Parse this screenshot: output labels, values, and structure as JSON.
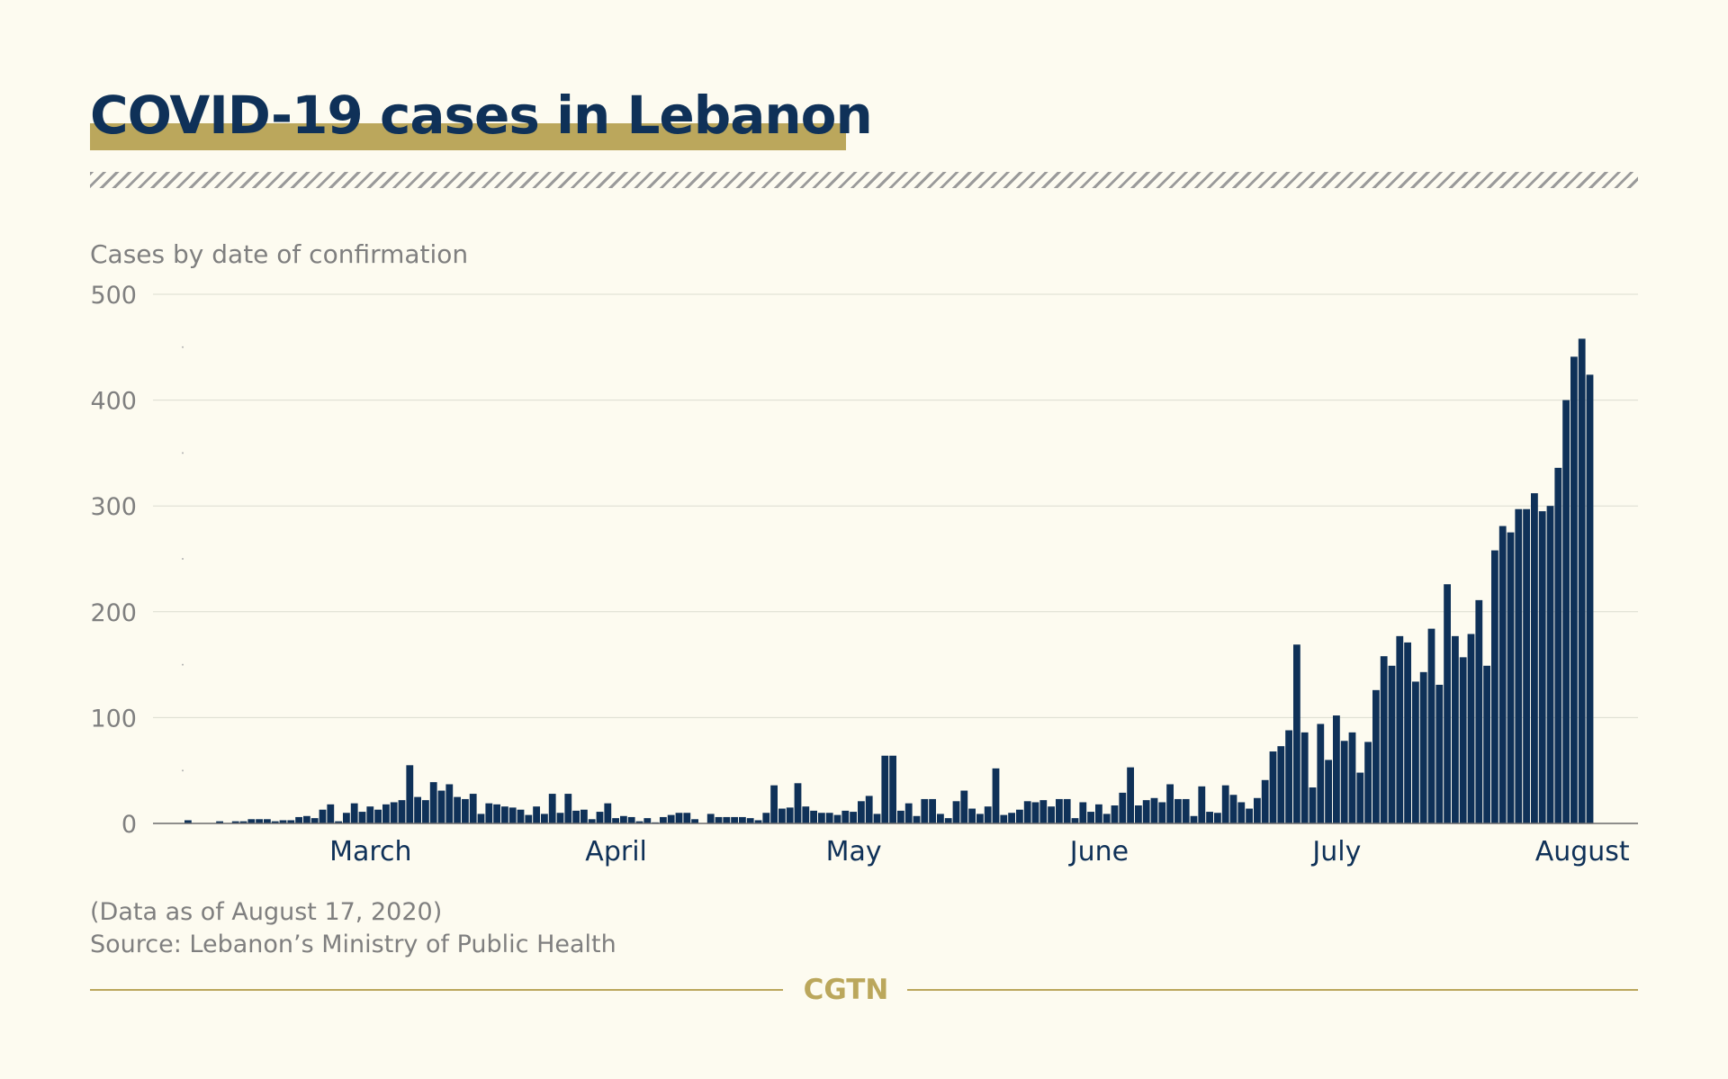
{
  "title": "COVID-19 cases in Lebanon",
  "footer": {
    "note": "(Data as of August 17, 2020)",
    "source": "Source: Lebanon’s Ministry of Public Health",
    "logo": "CGTN"
  },
  "colors": {
    "background": "#fdfbf0",
    "bar": "#0f3158",
    "title": "#0f3158",
    "accent": "#bba75c",
    "muted_text": "#7f7f7f",
    "grid": "#dcdcd0"
  },
  "chart_data": {
    "type": "bar",
    "title": "COVID-19 cases in Lebanon",
    "ylabel": "Cases by date of confirmation",
    "xlabel": "",
    "ylim": [
      0,
      500
    ],
    "yticks": [
      0,
      100,
      200,
      300,
      400,
      500
    ],
    "grid": true,
    "x_start": "2020-02-21",
    "x_end": "2020-08-17",
    "month_labels": [
      {
        "label": "March",
        "date": "2020-03-15"
      },
      {
        "label": "April",
        "date": "2020-04-15"
      },
      {
        "label": "May",
        "date": "2020-05-15"
      },
      {
        "label": "June",
        "date": "2020-06-15"
      },
      {
        "label": "July",
        "date": "2020-07-15"
      },
      {
        "label": "August",
        "date": "2020-08-15"
      }
    ],
    "series": [
      {
        "values": [
          3,
          0,
          0,
          0,
          2,
          0,
          2,
          2,
          4,
          4,
          4,
          2,
          3,
          3,
          6,
          7,
          5,
          13,
          18,
          2,
          10,
          19,
          11,
          16,
          13,
          18,
          20,
          22,
          55,
          25,
          22,
          39,
          31,
          37,
          25,
          23,
          28,
          9,
          19,
          18,
          16,
          15,
          13,
          8,
          16,
          9,
          28,
          10,
          28,
          12,
          13,
          4,
          11,
          19,
          5,
          7,
          6,
          2,
          5,
          1,
          6,
          8,
          10,
          10,
          4,
          0,
          9,
          6,
          6,
          6,
          6,
          5,
          3,
          10,
          36,
          14,
          15,
          38,
          16,
          12,
          10,
          10,
          8,
          12,
          11,
          21,
          26,
          9,
          64,
          64,
          12,
          19,
          7,
          23,
          23,
          9,
          5,
          21,
          31,
          14,
          9,
          16,
          52,
          8,
          10,
          13,
          21,
          20,
          22,
          16,
          23,
          23,
          5,
          20,
          11,
          18,
          9,
          17,
          29,
          53,
          17,
          22,
          24,
          20,
          37,
          23,
          23,
          7,
          35,
          11,
          10,
          36,
          27,
          20,
          14,
          24,
          41,
          68,
          73,
          88,
          169,
          86,
          34,
          94,
          60,
          102,
          78,
          86,
          48,
          77,
          126,
          158,
          149,
          177,
          171,
          134,
          143,
          184,
          131,
          226,
          177,
          157,
          179,
          211,
          149,
          258,
          281,
          275,
          297,
          297,
          312,
          295,
          300,
          336,
          400,
          441,
          458,
          424
        ]
      }
    ]
  }
}
